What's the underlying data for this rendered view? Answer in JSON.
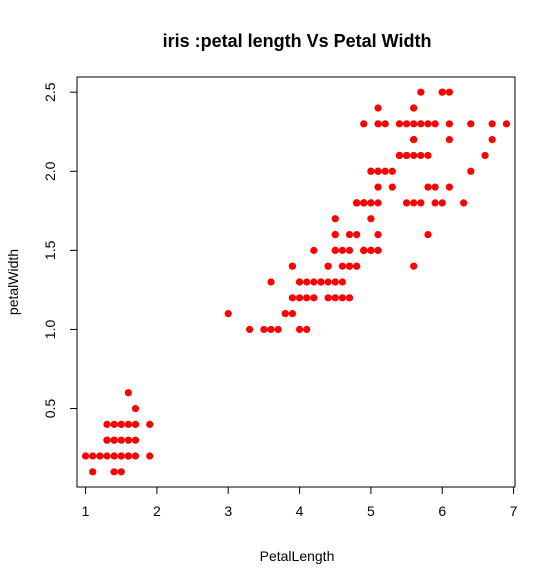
{
  "chart_data": {
    "type": "scatter",
    "title": "iris :petal length Vs Petal Width",
    "xlabel": "PetalLength",
    "ylabel": "petalWidth",
    "xlim": [
      0.88,
      7.02
    ],
    "ylim": [
      0.004,
      2.596
    ],
    "xticks": [
      1,
      2,
      3,
      4,
      5,
      6,
      7
    ],
    "yticks": [
      0.5,
      1.0,
      1.5,
      2.0,
      2.5
    ],
    "xtick_labels": [
      "1",
      "2",
      "3",
      "4",
      "5",
      "6",
      "7"
    ],
    "ytick_labels": [
      "0.5",
      "1.0",
      "1.5",
      "2.0",
      "2.5"
    ],
    "point_color": "#ff0000",
    "grid": false,
    "series": [
      {
        "x": [
          1.0,
          1.1,
          1.2,
          1.3,
          1.4,
          1.5,
          1.6,
          1.7,
          1.9,
          1.2,
          1.3,
          1.4,
          1.5,
          1.6,
          1.7,
          1.3,
          1.4,
          1.5,
          1.6,
          1.7,
          1.9,
          1.3,
          1.4,
          1.5,
          1.6,
          1.7,
          1.5,
          1.6,
          1.7,
          1.6,
          1.4,
          1.5,
          1.1,
          3.0,
          3.3,
          3.5,
          3.6,
          3.7,
          3.8,
          3.9,
          4.0,
          4.1,
          3.8,
          3.9,
          4.0,
          4.1,
          4.2,
          4.3,
          4.4,
          4.5,
          4.6,
          3.9,
          4.0,
          4.1,
          4.2,
          4.3,
          4.4,
          4.5,
          4.6,
          4.7,
          4.0,
          4.2,
          4.4,
          4.5,
          4.6,
          4.7,
          4.8,
          4.9,
          5.0,
          5.1,
          4.4,
          4.5,
          4.6,
          4.7,
          4.8,
          4.9,
          4.5,
          4.7,
          4.8,
          5.0,
          5.1,
          3.9,
          4.5,
          4.7,
          4.9,
          5.0,
          5.6,
          4.5,
          5.0,
          5.8,
          4.5,
          4.8,
          4.9,
          5.1,
          3.6,
          4.8,
          5.0,
          4.8,
          4.9,
          5.1,
          5.5,
          5.6,
          5.7,
          5.9,
          6.0,
          6.3,
          4.9,
          5.0,
          5.1,
          5.3,
          5.8,
          5.9,
          6.1,
          4.8,
          5.0,
          5.1,
          5.3,
          5.4,
          5.5,
          5.6,
          5.7,
          5.8,
          6.4,
          5.0,
          5.1,
          5.2,
          5.4,
          5.5,
          5.6,
          6.6,
          5.4,
          5.6,
          6.1,
          6.7,
          4.9,
          5.6,
          5.8,
          6.4,
          6.7,
          5.1,
          5.2,
          5.4,
          5.5,
          5.6,
          5.7,
          5.9,
          6.1,
          6.9,
          5.1,
          5.6,
          6.0,
          5.7,
          6.0,
          6.1
        ],
        "y": [
          0.2,
          0.2,
          0.2,
          0.2,
          0.2,
          0.2,
          0.2,
          0.2,
          0.2,
          0.2,
          0.3,
          0.3,
          0.3,
          0.3,
          0.3,
          0.4,
          0.4,
          0.4,
          0.4,
          0.4,
          0.4,
          0.3,
          0.3,
          0.2,
          0.2,
          0.5,
          0.4,
          0.6,
          0.4,
          0.2,
          0.1,
          0.1,
          0.1,
          1.1,
          1.0,
          1.0,
          1.0,
          1.0,
          1.1,
          1.1,
          1.0,
          1.0,
          1.1,
          1.2,
          1.2,
          1.2,
          1.2,
          1.3,
          1.3,
          1.3,
          1.3,
          1.4,
          1.3,
          1.3,
          1.3,
          1.3,
          1.2,
          1.2,
          1.2,
          1.2,
          1.3,
          1.5,
          1.4,
          1.5,
          1.5,
          1.4,
          1.4,
          1.5,
          1.5,
          1.5,
          1.4,
          1.6,
          1.4,
          1.5,
          1.4,
          1.5,
          1.7,
          1.6,
          1.6,
          1.7,
          1.6,
          1.4,
          1.5,
          1.4,
          1.5,
          1.5,
          1.4,
          1.3,
          1.5,
          1.6,
          1.6,
          1.8,
          1.8,
          1.5,
          1.3,
          1.8,
          1.8,
          1.8,
          1.8,
          1.8,
          1.8,
          1.8,
          1.8,
          1.8,
          1.8,
          1.8,
          1.8,
          1.8,
          1.9,
          1.9,
          1.9,
          1.9,
          1.9,
          1.8,
          2.0,
          2.0,
          2.0,
          2.1,
          2.1,
          2.1,
          2.1,
          2.1,
          2.0,
          2.0,
          2.0,
          2.0,
          2.1,
          2.1,
          2.2,
          2.1,
          2.1,
          2.2,
          2.2,
          2.2,
          2.3,
          2.3,
          2.3,
          2.3,
          2.3,
          2.3,
          2.3,
          2.3,
          2.3,
          2.4,
          2.3,
          2.3,
          2.3,
          2.3,
          2.4,
          2.4,
          2.5,
          2.5,
          2.5,
          2.5
        ]
      }
    ]
  }
}
